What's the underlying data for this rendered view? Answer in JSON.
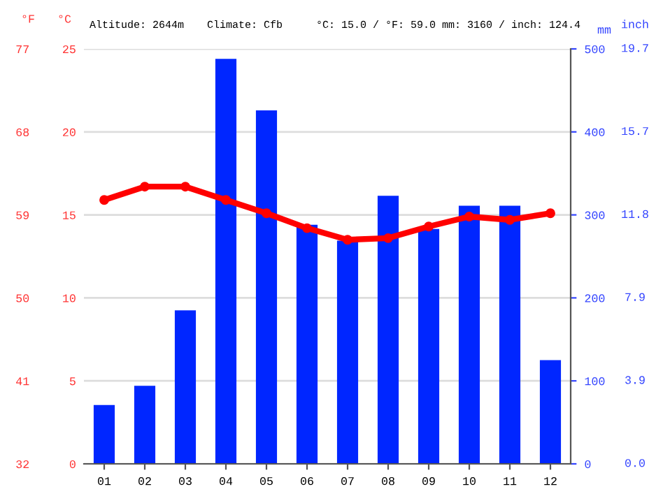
{
  "chart_data": {
    "type": "bar",
    "categories": [
      "01",
      "02",
      "03",
      "04",
      "05",
      "06",
      "07",
      "08",
      "09",
      "10",
      "11",
      "12"
    ],
    "series": [
      {
        "axis": "y2",
        "color": "#0026ff",
        "values": [
          71,
          94,
          185,
          488,
          426,
          288,
          269,
          323,
          283,
          311,
          311,
          125
        ]
      },
      {
        "type": "line",
        "axis": "y",
        "color": "#ff0000",
        "marker": "circle",
        "values": [
          15.9,
          16.7,
          16.7,
          15.9,
          15.1,
          14.2,
          13.5,
          13.6,
          14.3,
          14.9,
          14.7,
          15.1
        ]
      }
    ],
    "ylabel": "°C",
    "ylim": [
      0,
      25
    ],
    "yticks": [
      0,
      5,
      10,
      15,
      20,
      25
    ],
    "y2label": "mm",
    "y2lim": [
      0,
      500
    ],
    "y2ticks": [
      0,
      100,
      200,
      300,
      400,
      500
    ],
    "y3label": "°F",
    "y3lim": [
      32,
      77
    ],
    "y3ticks": [
      32,
      41,
      50,
      59,
      68,
      77
    ],
    "annotations": [
      "Altitude: 2644m",
      "Climate: Cfb",
      "°C: 15.0 / °F: 59.0",
      "mm: 3160 / inch: 124.4",
      "inch",
      "0.0",
      "3.9",
      "7.9",
      "11.8",
      "15.7",
      "19.7"
    ],
    "grid": "y",
    "legend": false
  }
}
